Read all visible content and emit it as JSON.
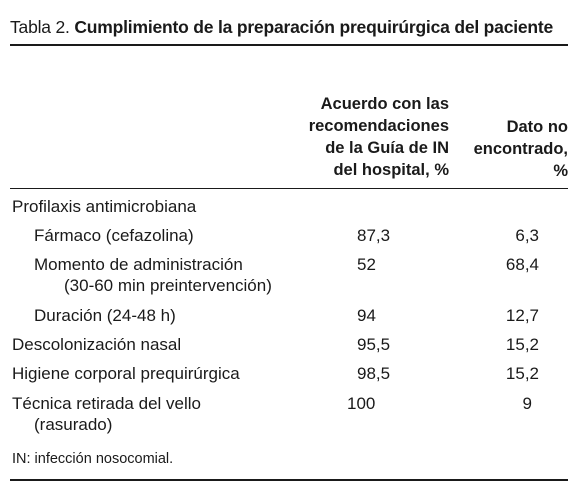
{
  "table": {
    "label_prefix": "Tabla 2. ",
    "title": "Cumplimiento de la preparación prequirúrgica del paciente",
    "col1_header": [
      "Acuerdo con las",
      "recomendaciones",
      "de la Guía de IN",
      "del hospital, %"
    ],
    "col2_header": [
      "Dato no",
      "encontrado,",
      "%"
    ],
    "section_label": "Profilaxis antimicrobiana",
    "rows": [
      {
        "label": "Fármaco (cefazolina)",
        "sub": "",
        "v1": "87,3",
        "v2": "6,3"
      },
      {
        "label": "Momento de administración",
        "sub": "(30-60 min preintervención)",
        "v1": "52",
        "v2": "68,4"
      },
      {
        "label": "Duración (24-48 h)",
        "sub": "",
        "v1": "94",
        "v2": "12,7"
      },
      {
        "label": "Descolonización nasal",
        "sub": "",
        "v1": "95,5",
        "v2": "15,2"
      },
      {
        "label": "Higiene corporal prequirúrgica",
        "sub": "",
        "v1": "98,5",
        "v2": "15,2"
      },
      {
        "label": "Técnica retirada del vello",
        "sub": "(rasurado)",
        "v1": "100",
        "v2": "9"
      }
    ],
    "footnote": "IN: infección nosocomial."
  }
}
